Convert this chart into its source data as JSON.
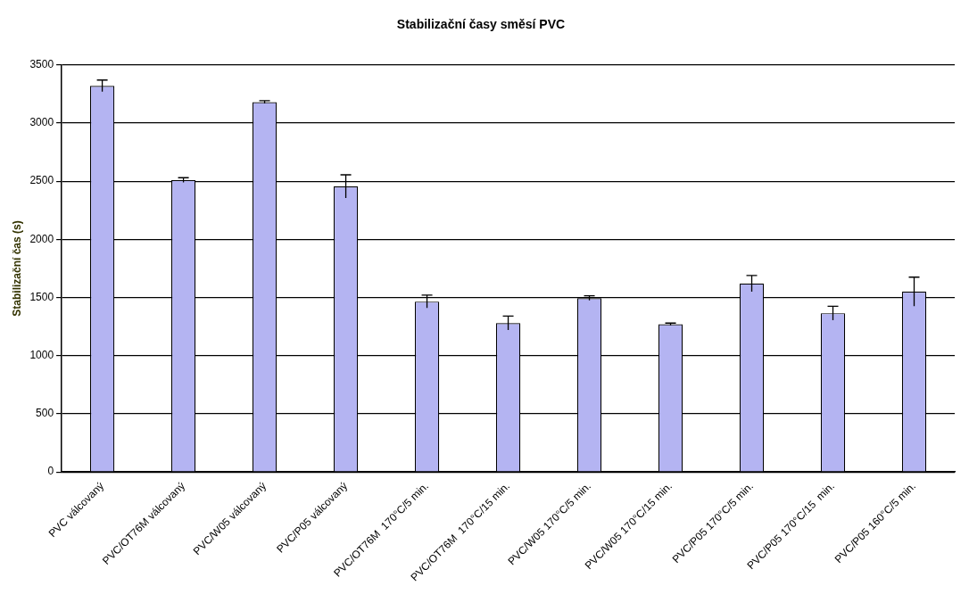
{
  "chart_data": {
    "type": "bar",
    "title": "Stabilizační časy směsí PVC",
    "ylabel": "Stabilizační čas (s)",
    "categories": [
      "PVC válcovaný",
      "PVC/OT76M válcovaný",
      "PVC/W05 válcovaný",
      "PVC/P05 válcovaný",
      "PVC/OT76M  170°C/5 min.",
      "PVC/OT76M  170°C/15 min.",
      "PVC/W05 170°C/5 min.",
      "PVC/W05 170°C/15 min.",
      "PVC/P05 170°C/5 min.",
      "PVC/P05 170°C/15  min.",
      "PVC/P05 160°C/5 min."
    ],
    "values": [
      3320,
      2510,
      3180,
      2455,
      1465,
      1280,
      1495,
      1270,
      1620,
      1365,
      1550
    ],
    "errors": [
      50,
      20,
      12,
      100,
      55,
      60,
      20,
      10,
      70,
      60,
      125
    ],
    "color": "#b4b4f2",
    "ylim": [
      0,
      3500
    ],
    "yticks": [
      0,
      500,
      1000,
      1500,
      2000,
      2500,
      3000,
      3500
    ],
    "grid": "y",
    "legend": false
  }
}
